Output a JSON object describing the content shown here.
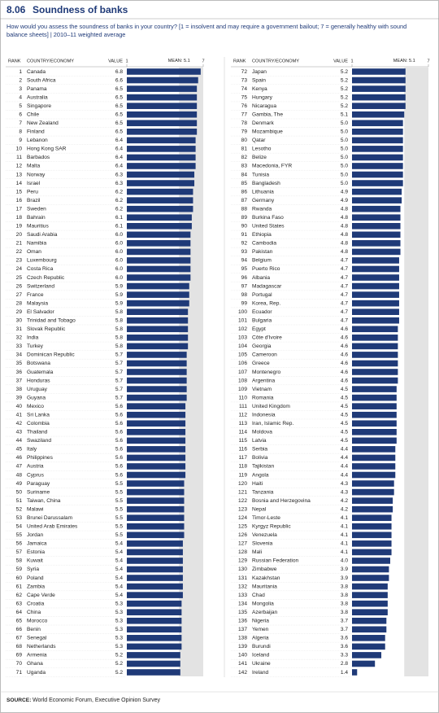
{
  "chart_data": {
    "type": "bar",
    "figure_number": "8.06",
    "title": "Soundness of banks",
    "subtitle": "How would you assess the soundness of banks in your country? [1 = insolvent and may require a government bailout; 7 = generally healthy with sound balance sheets] | 2010–11 weighted average",
    "rank_header": "RANK",
    "country_header": "COUNTRY/ECONOMY",
    "value_header": "VALUE",
    "mean_label": "MEAN:",
    "mean": 5.1,
    "xlim": [
      1,
      7
    ],
    "xticks": [
      1,
      7
    ],
    "color": "#1f3a78",
    "ranks": [
      1,
      2,
      3,
      4,
      5,
      6,
      7,
      8,
      9,
      10,
      11,
      12,
      13,
      14,
      15,
      16,
      17,
      18,
      19,
      20,
      21,
      22,
      23,
      24,
      25,
      26,
      27,
      28,
      29,
      30,
      31,
      32,
      33,
      34,
      35,
      36,
      37,
      38,
      39,
      40,
      41,
      42,
      43,
      44,
      45,
      46,
      47,
      48,
      49,
      50,
      51,
      52,
      53,
      54,
      55,
      56,
      57,
      58,
      59,
      60,
      61,
      62,
      63,
      64,
      65,
      66,
      67,
      68,
      69,
      70,
      71,
      72,
      73,
      74,
      75,
      76,
      77,
      78,
      79,
      80,
      81,
      82,
      83,
      84,
      85,
      86,
      87,
      88,
      89,
      90,
      91,
      92,
      93,
      94,
      95,
      96,
      97,
      98,
      99,
      100,
      101,
      102,
      103,
      104,
      105,
      106,
      107,
      108,
      109,
      110,
      111,
      112,
      113,
      114,
      115,
      116,
      117,
      118,
      119,
      120,
      121,
      122,
      123,
      124,
      125,
      126,
      127,
      128,
      129,
      130,
      131,
      132,
      133,
      134,
      135,
      136,
      137,
      138,
      139,
      140,
      141,
      142
    ],
    "categories": [
      "Canada",
      "South Africa",
      "Panama",
      "Australia",
      "Singapore",
      "Chile",
      "New Zealand",
      "Finland",
      "Lebanon",
      "Hong Kong SAR",
      "Barbados",
      "Malta",
      "Norway",
      "Israel",
      "Peru",
      "Brazil",
      "Sweden",
      "Bahrain",
      "Mauritius",
      "Saudi Arabia",
      "Namibia",
      "Oman",
      "Luxembourg",
      "Costa Rica",
      "Czech Republic",
      "Switzerland",
      "France",
      "Malaysia",
      "El Salvador",
      "Trinidad and Tobago",
      "Slovak Republic",
      "India",
      "Turkey",
      "Dominican Republic",
      "Botswana",
      "Guatemala",
      "Honduras",
      "Uruguay",
      "Guyana",
      "Mexico",
      "Sri Lanka",
      "Colombia",
      "Thailand",
      "Swaziland",
      "Italy",
      "Philippines",
      "Austria",
      "Cyprus",
      "Paraguay",
      "Suriname",
      "Taiwan, China",
      "Malawi",
      "Brunei Darussalam",
      "United Arab Emirates",
      "Jordan",
      "Jamaica",
      "Estonia",
      "Kuwait",
      "Syria",
      "Poland",
      "Zambia",
      "Cape Verde",
      "Croatia",
      "China",
      "Morocco",
      "Benin",
      "Senegal",
      "Netherlands",
      "Armenia",
      "Ghana",
      "Uganda",
      "Japan",
      "Spain",
      "Kenya",
      "Hungary",
      "Nicaragua",
      "Gambia, The",
      "Denmark",
      "Mozambique",
      "Qatar",
      "Lesotho",
      "Belize",
      "Macedonia, FYR",
      "Tunisia",
      "Bangladesh",
      "Lithuania",
      "Germany",
      "Rwanda",
      "Burkina Faso",
      "United States",
      "Ethiopia",
      "Cambodia",
      "Pakistan",
      "Belgium",
      "Puerto Rico",
      "Albania",
      "Madagascar",
      "Portugal",
      "Korea, Rep.",
      "Ecuador",
      "Bulgaria",
      "Egypt",
      "Côte d'Ivoire",
      "Georgia",
      "Cameroon",
      "Greece",
      "Montenegro",
      "Argentina",
      "Vietnam",
      "Romania",
      "United Kingdom",
      "Indonesia",
      "Iran, Islamic Rep.",
      "Moldova",
      "Latvia",
      "Serbia",
      "Bolivia",
      "Tajikistan",
      "Angola",
      "Haiti",
      "Tanzania",
      "Bosnia and Herzegovina",
      "Nepal",
      "Timor-Leste",
      "Kyrgyz Republic",
      "Venezuela",
      "Slovenia",
      "Mali",
      "Russian Federation",
      "Zimbabwe",
      "Kazakhstan",
      "Mauritania",
      "Chad",
      "Mongolia",
      "Azerbaijan",
      "Nigeria",
      "Yemen",
      "Algeria",
      "Burundi",
      "Iceland",
      "Ukraine",
      "Ireland"
    ],
    "values": [
      6.8,
      6.6,
      6.5,
      6.5,
      6.5,
      6.5,
      6.5,
      6.5,
      6.4,
      6.4,
      6.4,
      6.4,
      6.3,
      6.3,
      6.2,
      6.2,
      6.2,
      6.1,
      6.1,
      6.0,
      6.0,
      6.0,
      6.0,
      6.0,
      6.0,
      5.9,
      5.9,
      5.9,
      5.8,
      5.8,
      5.8,
      5.8,
      5.8,
      5.7,
      5.7,
      5.7,
      5.7,
      5.7,
      5.7,
      5.6,
      5.6,
      5.6,
      5.6,
      5.6,
      5.6,
      5.6,
      5.6,
      5.6,
      5.5,
      5.5,
      5.5,
      5.5,
      5.5,
      5.5,
      5.5,
      5.4,
      5.4,
      5.4,
      5.4,
      5.4,
      5.4,
      5.4,
      5.3,
      5.3,
      5.3,
      5.3,
      5.3,
      5.3,
      5.2,
      5.2,
      5.2,
      5.2,
      5.2,
      5.2,
      5.2,
      5.2,
      5.1,
      5.0,
      5.0,
      5.0,
      5.0,
      5.0,
      5.0,
      5.0,
      5.0,
      4.9,
      4.9,
      4.8,
      4.8,
      4.8,
      4.8,
      4.8,
      4.8,
      4.7,
      4.7,
      4.7,
      4.7,
      4.7,
      4.7,
      4.7,
      4.7,
      4.6,
      4.6,
      4.6,
      4.6,
      4.6,
      4.6,
      4.6,
      4.5,
      4.5,
      4.5,
      4.5,
      4.5,
      4.5,
      4.5,
      4.4,
      4.4,
      4.4,
      4.4,
      4.3,
      4.3,
      4.2,
      4.2,
      4.1,
      4.1,
      4.1,
      4.1,
      4.1,
      4.0,
      3.9,
      3.9,
      3.8,
      3.8,
      3.8,
      3.8,
      3.7,
      3.7,
      3.6,
      3.6,
      3.3,
      2.8,
      1.4
    ],
    "value_labels": [
      "6.8",
      "6.6",
      "6.5",
      "6.5",
      "6.5",
      "6.5",
      "6.5",
      "6.5",
      "6.4",
      "6.4",
      "6.4",
      "6.4",
      "6.3",
      "6.3",
      "6.2",
      "6.2",
      "6.2",
      "6.1",
      "6.1",
      "6.0",
      "6.0",
      "6.0",
      "6.0",
      "6.0",
      "6.0",
      "5.9",
      "5.9",
      "5.9",
      "5.8",
      "5.8",
      "5.8",
      "5.8",
      "5.8",
      "5.7",
      "5.7",
      "5.7",
      "5.7",
      "5.7",
      "5.7",
      "5.6",
      "5.6",
      "5.6",
      "5.6",
      "5.6",
      "5.6",
      "5.6",
      "5.6",
      "5.6",
      "5.5",
      "5.5",
      "5.5",
      "5.5",
      "5.5",
      "5.5",
      "5.5",
      "5.4",
      "5.4",
      "5.4",
      "5.4",
      "5.4",
      "5.4",
      "5.4",
      "5.3",
      "5.3",
      "5.3",
      "5.3",
      "5.3",
      "5.3",
      "5.2",
      "5.2",
      "5.2",
      "5.2",
      "5.2",
      "5.2",
      "5.2",
      "5.2",
      "5.1",
      "5.0",
      "5.0",
      "5.0",
      "5.0",
      "5.0",
      "5.0",
      "5.0",
      "5.0",
      "4.9",
      "4.9",
      "4.8",
      "4.8",
      "4.8",
      "4.8",
      "4.8",
      "4.8",
      "4.7",
      "4.7",
      "4.7",
      "4.7",
      "4.7",
      "4.7",
      "4.7",
      "4.7",
      "4.6",
      "4.6",
      "4.6",
      "4.6",
      "4.6",
      "4.6",
      "4.6",
      "4.5",
      "4.5",
      "4.5",
      "4.5",
      "4.5",
      "4.5",
      "4.5",
      "4.4",
      "4.4",
      "4.4",
      "4.4",
      "4.3",
      "4.3",
      "4.2",
      "4.2",
      "4.1",
      "4.1",
      "4.1",
      "4.1",
      "4.1",
      "4.0",
      "3.9",
      "3.9",
      "3.8",
      "3.8",
      "3.8",
      "3.8",
      "3.7",
      "3.7",
      "3.6",
      "3.6",
      "3.3",
      "2.8",
      "1.4"
    ],
    "source_label": "SOURCE:",
    "source": "World Economic Forum, Executive Opinion Survey"
  }
}
